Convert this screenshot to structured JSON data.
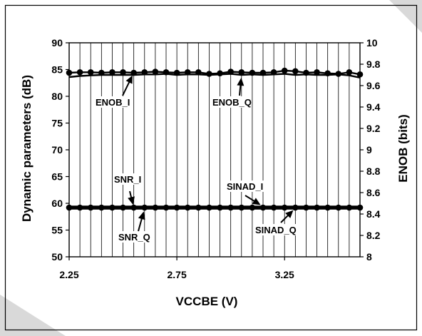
{
  "chart_data": {
    "type": "line",
    "xlabel": "VCCBE (V)",
    "ylabel_left": "Dynamic parameters (dB)",
    "ylabel_right": "ENOB (bits)",
    "xlim": [
      2.25,
      3.6
    ],
    "ylim_left": [
      50,
      90
    ],
    "ylim_right": [
      8,
      10
    ],
    "xticks": [
      "2.25",
      "2.75",
      "3.25"
    ],
    "yticks_left": [
      "50",
      "55",
      "60",
      "65",
      "70",
      "75",
      "80",
      "85",
      "90"
    ],
    "yticks_right": [
      "8",
      "8.2",
      "8.4",
      "8.6",
      "8.8",
      "9",
      "9.2",
      "9.4",
      "9.6",
      "9.8",
      "10"
    ],
    "grid": true,
    "x": [
      2.25,
      2.3,
      2.35,
      2.4,
      2.45,
      2.5,
      2.55,
      2.6,
      2.65,
      2.7,
      2.75,
      2.8,
      2.85,
      2.9,
      2.95,
      3.0,
      3.05,
      3.1,
      3.15,
      3.2,
      3.25,
      3.3,
      3.35,
      3.4,
      3.45,
      3.5,
      3.55,
      3.6
    ],
    "series": [
      {
        "name": "ENOB_I",
        "axis": "left",
        "markers": true,
        "values": [
          84.4,
          84.5,
          84.5,
          84.4,
          84.5,
          84.5,
          84.4,
          84.5,
          84.6,
          84.5,
          84.4,
          84.5,
          84.5,
          84.2,
          84.3,
          84.6,
          84.5,
          84.4,
          84.4,
          84.5,
          84.8,
          84.7,
          84.4,
          84.5,
          84.3,
          84.2,
          84.5,
          84.1
        ]
      },
      {
        "name": "ENOB_Q",
        "axis": "left",
        "markers": false,
        "values": [
          83.6,
          83.8,
          83.9,
          84.0,
          84.0,
          84.0,
          84.0,
          84.1,
          84.1,
          84.2,
          84.0,
          84.1,
          84.1,
          84.0,
          84.1,
          84.2,
          84.0,
          84.1,
          84.0,
          84.1,
          84.2,
          84.0,
          84.1,
          84.0,
          84.0,
          84.1,
          83.9,
          83.5
        ]
      },
      {
        "name": "SNR_I",
        "axis": "left",
        "markers": true,
        "values": [
          59.2,
          59.2,
          59.2,
          59.2,
          59.2,
          59.2,
          59.2,
          59.2,
          59.2,
          59.2,
          59.2,
          59.2,
          59.2,
          59.2,
          59.2,
          59.2,
          59.2,
          59.2,
          59.2,
          59.2,
          59.2,
          59.2,
          59.2,
          59.2,
          59.2,
          59.2,
          59.2,
          59.2
        ]
      },
      {
        "name": "SNR_Q",
        "axis": "left",
        "markers": false,
        "values": [
          59.0,
          59.0,
          59.0,
          59.0,
          59.0,
          59.0,
          59.0,
          59.0,
          59.0,
          59.0,
          59.0,
          59.0,
          59.0,
          59.0,
          59.0,
          59.0,
          59.0,
          59.0,
          59.0,
          59.0,
          59.0,
          59.0,
          59.0,
          59.0,
          59.0,
          59.0,
          59.0,
          59.0
        ]
      },
      {
        "name": "SINAD_I",
        "axis": "left",
        "markers": false,
        "values": [
          59.4,
          59.4,
          59.4,
          59.4,
          59.4,
          59.4,
          59.4,
          59.4,
          59.4,
          59.4,
          59.4,
          59.4,
          59.4,
          59.4,
          59.4,
          59.4,
          59.4,
          59.4,
          59.4,
          59.4,
          59.4,
          59.4,
          59.4,
          59.4,
          59.4,
          59.4,
          59.4,
          59.4
        ]
      },
      {
        "name": "SINAD_Q",
        "axis": "left",
        "markers": false,
        "values": [
          59.1,
          59.1,
          59.1,
          59.1,
          59.1,
          59.1,
          59.1,
          59.1,
          59.1,
          59.1,
          59.1,
          59.1,
          59.1,
          59.1,
          59.1,
          59.1,
          59.1,
          59.1,
          59.1,
          59.1,
          59.1,
          59.1,
          59.1,
          59.1,
          59.1,
          59.1,
          59.1,
          59.1
        ]
      }
    ],
    "annotations": [
      {
        "text": "ENOB_I",
        "series": "ENOB_I",
        "at_x": 2.55
      },
      {
        "text": "ENOB_Q",
        "series": "ENOB_Q",
        "at_x": 3.05
      },
      {
        "text": "SNR_I",
        "series": "SNR_I",
        "at_x": 2.55
      },
      {
        "text": "SNR_Q",
        "series": "SNR_Q",
        "at_x": 2.6
      },
      {
        "text": "SINAD_I",
        "series": "SINAD_I",
        "at_x": 3.15
      },
      {
        "text": "SINAD_Q",
        "series": "SINAD_Q",
        "at_x": 3.3
      }
    ]
  },
  "colors": {
    "line": "#000000",
    "grid": "#000000",
    "corner_mark": "#d9d9d9"
  }
}
